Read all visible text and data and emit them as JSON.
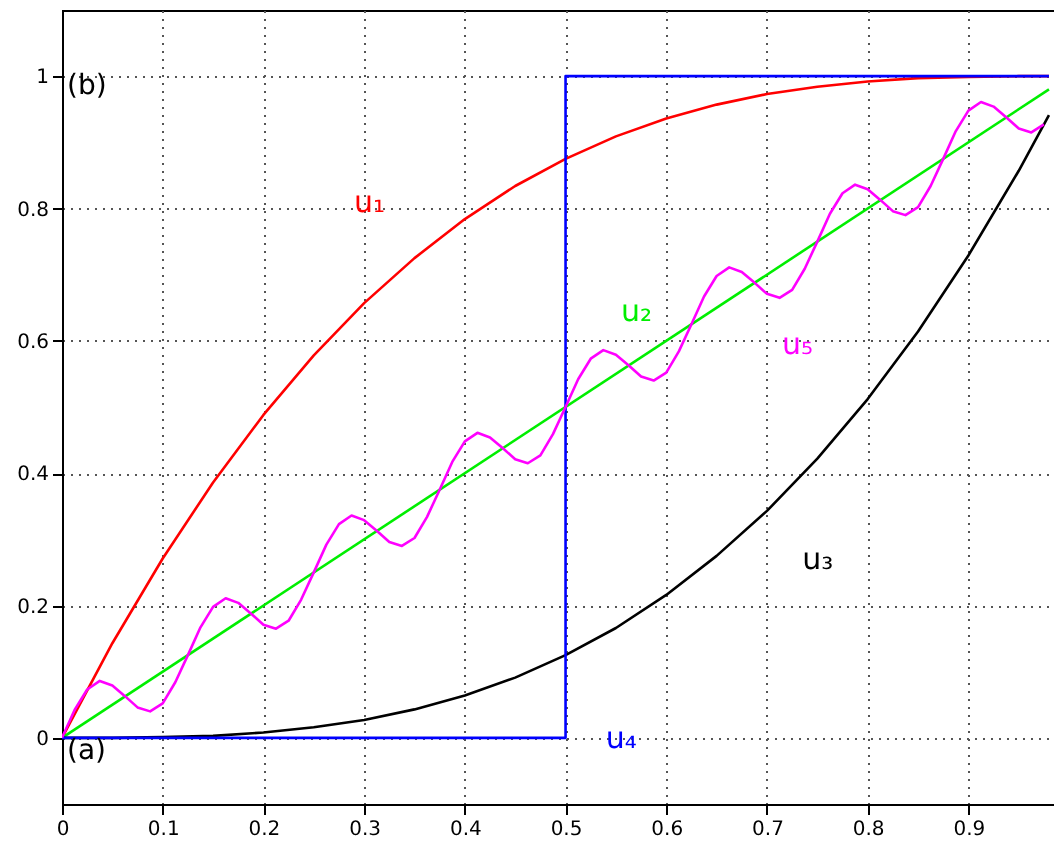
{
  "chart_data": {
    "type": "line",
    "annotations": [
      "(b)",
      "(a)"
    ],
    "xlim": [
      0,
      0.985
    ],
    "ylim": [
      -0.1,
      1.1
    ],
    "xticks": [
      0,
      0.1,
      0.2,
      0.3,
      0.4,
      0.5,
      0.6,
      0.7,
      0.8,
      0.9
    ],
    "yticks": [
      0,
      0.2,
      0.4,
      0.6,
      0.8,
      1
    ],
    "grid": true,
    "line_style": "solid",
    "x": [
      0,
      0.05,
      0.1,
      0.15,
      0.2,
      0.25,
      0.3,
      0.35,
      0.4,
      0.45,
      0.5,
      0.55,
      0.6,
      0.65,
      0.7,
      0.75,
      0.8,
      0.85,
      0.9,
      0.95,
      0.98
    ],
    "series": [
      {
        "name": "u₁",
        "color": "#ff0000",
        "values": [
          0,
          0.143,
          0.271,
          0.386,
          0.488,
          0.578,
          0.657,
          0.725,
          0.784,
          0.834,
          0.875,
          0.909,
          0.936,
          0.957,
          0.973,
          0.984,
          0.992,
          0.997,
          0.999,
          1.0,
          1.0
        ]
      },
      {
        "name": "u₂",
        "color": "#00ee00",
        "x": [
          0,
          0.98
        ],
        "values": [
          0,
          0.98
        ]
      },
      {
        "name": "u₃",
        "color": "#000000",
        "values": [
          0,
          0,
          0.001,
          0.003,
          0.008,
          0.016,
          0.027,
          0.043,
          0.064,
          0.091,
          0.125,
          0.166,
          0.216,
          0.275,
          0.343,
          0.422,
          0.512,
          0.614,
          0.729,
          0.857,
          0.941
        ]
      },
      {
        "name": "u₄",
        "color": "#0000ff",
        "x": [
          0,
          0.5,
          0.5,
          0.98
        ],
        "values": [
          0,
          0,
          1,
          1
        ]
      },
      {
        "name": "u₅",
        "color": "#ff00ff",
        "x": [
          0,
          0.0125,
          0.025,
          0.0375,
          0.05,
          0.0625,
          0.075,
          0.0875,
          0.1,
          0.1125,
          0.125,
          0.1375,
          0.15,
          0.1625,
          0.175,
          0.1875,
          0.2,
          0.2125,
          0.225,
          0.2375,
          0.25,
          0.2625,
          0.275,
          0.2875,
          0.3,
          0.3125,
          0.325,
          0.3375,
          0.35,
          0.3625,
          0.375,
          0.3875,
          0.4,
          0.4125,
          0.425,
          0.4375,
          0.45,
          0.4625,
          0.475,
          0.4875,
          0.5,
          0.5125,
          0.525,
          0.5375,
          0.55,
          0.5625,
          0.575,
          0.5875,
          0.6,
          0.6125,
          0.625,
          0.6375,
          0.65,
          0.6625,
          0.675,
          0.6875,
          0.7,
          0.7125,
          0.725,
          0.7375,
          0.75,
          0.7625,
          0.775,
          0.7875,
          0.8,
          0.8125,
          0.825,
          0.8375,
          0.85,
          0.8625,
          0.875,
          0.8875,
          0.9,
          0.9125,
          0.925,
          0.9375,
          0.95,
          0.9625,
          0.975
        ],
        "values": [
          0,
          0.042,
          0.073,
          0.086,
          0.079,
          0.063,
          0.046,
          0.04,
          0.052,
          0.084,
          0.125,
          0.167,
          0.198,
          0.211,
          0.204,
          0.188,
          0.171,
          0.165,
          0.177,
          0.209,
          0.25,
          0.292,
          0.323,
          0.336,
          0.329,
          0.313,
          0.296,
          0.29,
          0.302,
          0.334,
          0.375,
          0.417,
          0.448,
          0.461,
          0.454,
          0.438,
          0.421,
          0.415,
          0.427,
          0.459,
          0.5,
          0.542,
          0.573,
          0.586,
          0.579,
          0.563,
          0.546,
          0.54,
          0.552,
          0.584,
          0.625,
          0.667,
          0.698,
          0.711,
          0.704,
          0.688,
          0.671,
          0.665,
          0.677,
          0.709,
          0.75,
          0.792,
          0.823,
          0.836,
          0.829,
          0.813,
          0.796,
          0.79,
          0.802,
          0.834,
          0.875,
          0.917,
          0.948,
          0.961,
          0.954,
          0.938,
          0.921,
          0.915,
          0.927
        ]
      }
    ]
  }
}
